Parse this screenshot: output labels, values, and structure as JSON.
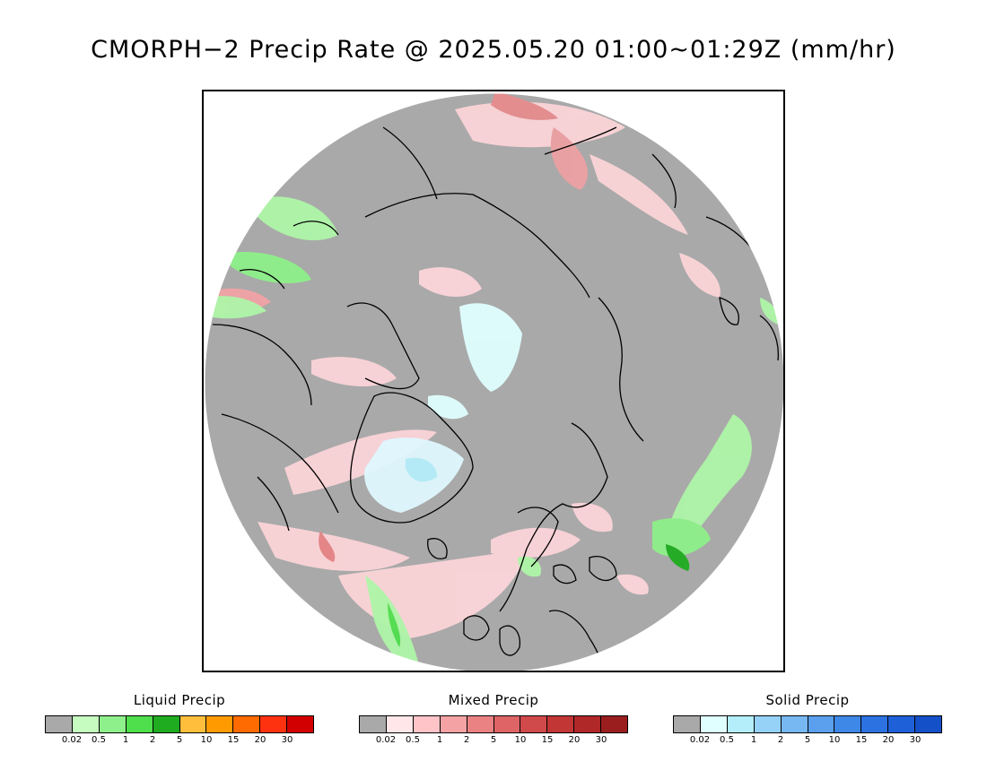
{
  "title": "CMORPH−2 Precip Rate @ 2025.05.20 01:00~01:29Z (mm/hr)",
  "map": {
    "projection": "north polar stereographic",
    "background_color": "#a9a9a9",
    "coastline_color": "#000000",
    "regions_note_colors": {
      "trace": "#a9a9a9",
      "light_mixed": "#ffd6da",
      "light_liquid": "#aef5a8",
      "light_solid": "#dff8ff"
    }
  },
  "legends": [
    {
      "title": "Liquid Precip",
      "colors": [
        "#a9a9a9",
        "#c6fcc0",
        "#8ef08a",
        "#4fde4c",
        "#20ac20",
        "#ffbf3c",
        "#ff9a00",
        "#ff6b00",
        "#ff3210",
        "#d20000"
      ],
      "ticks": [
        "0.02",
        "0.5",
        "1",
        "2",
        "5",
        "10",
        "15",
        "20",
        "30"
      ]
    },
    {
      "title": "Mixed Precip",
      "colors": [
        "#a9a9a9",
        "#ffe6e8",
        "#ffc4c8",
        "#f4a2a4",
        "#ea8284",
        "#df6466",
        "#d04a4c",
        "#c23636",
        "#b02828",
        "#9b1e1e"
      ],
      "ticks": [
        "0.02",
        "0.5",
        "1",
        "2",
        "5",
        "10",
        "15",
        "20",
        "30"
      ]
    },
    {
      "title": "Solid Precip",
      "colors": [
        "#a9a9a9",
        "#e0ffff",
        "#b4eefa",
        "#96d2f8",
        "#78b8f2",
        "#5aa0ee",
        "#3e88e8",
        "#2c72e0",
        "#1e60d8",
        "#1450c8"
      ],
      "ticks": [
        "0.02",
        "0.5",
        "1",
        "2",
        "5",
        "10",
        "15",
        "20",
        "30"
      ]
    }
  ]
}
